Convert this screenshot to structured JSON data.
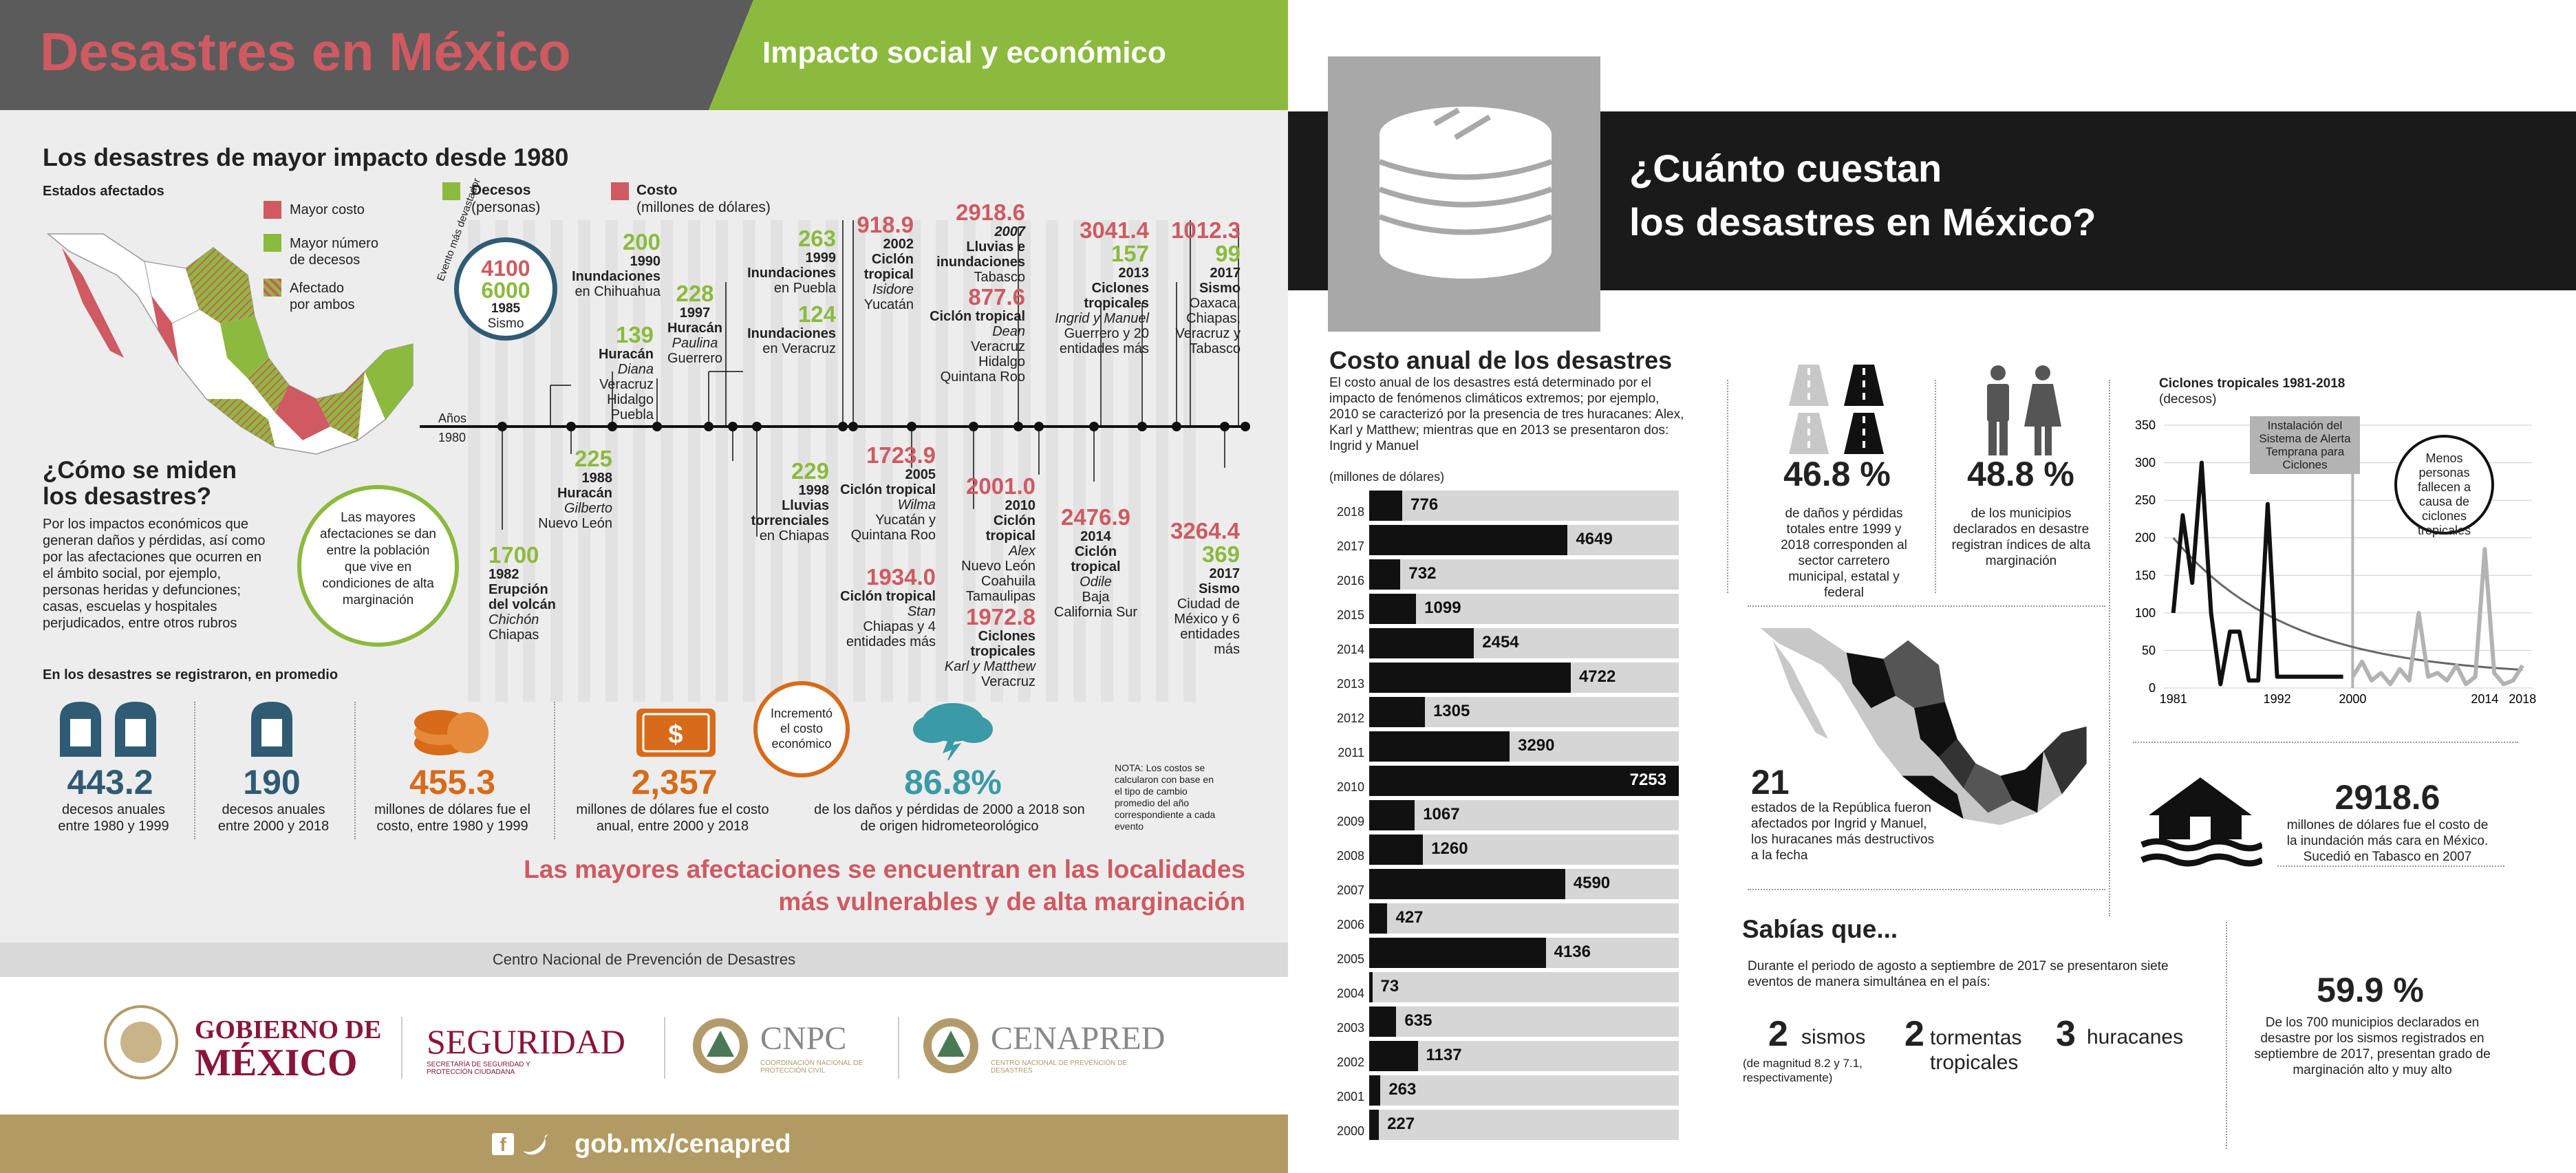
{
  "left": {
    "title": "Desastres en México",
    "subtitle": "Impacto social y económico",
    "section_title": "Los desastres de mayor impacto desde 1980",
    "map_label": "Estados afectados",
    "legend": [
      {
        "label": "Mayor costo",
        "color": "#cf5a61"
      },
      {
        "label": "Mayor número de decesos",
        "color": "#8cba3e"
      },
      {
        "label": "Afectado por ambos",
        "color": "#b3a35a"
      }
    ],
    "legend_decesos": {
      "title": "Decesos",
      "sub": "(personas)"
    },
    "legend_costo": {
      "title": "Costo",
      "sub": "(millones de dólares)"
    },
    "evento_label": "Evento más devastador",
    "big_event": {
      "cost": "4100",
      "deaths": "6000",
      "year": "1985",
      "name": "Sismo"
    },
    "timeline": {
      "label": "Años",
      "start": "1980"
    },
    "events_top": [
      {
        "id": "e1990",
        "value": "200",
        "color": "green",
        "year": "1990",
        "desc": "Inundaciones",
        "sub": "en Chihuahua",
        "italic": ""
      },
      {
        "id": "e1995",
        "value": "139",
        "color": "green",
        "year": "",
        "desc": "Huracán",
        "sub": "Veracruz Hidalgo Puebla",
        "italic": "Diana"
      },
      {
        "id": "e1997",
        "value": "228",
        "color": "green",
        "year": "1997",
        "desc": "Huracán",
        "sub": "Guerrero",
        "italic": "Paulina"
      },
      {
        "id": "e1999",
        "value": "263",
        "color": "green",
        "year": "1999",
        "desc": "Inundaciones",
        "sub": "en Puebla",
        "italic": ""
      },
      {
        "id": "e1999b",
        "value": "124",
        "color": "green",
        "year": "",
        "desc": "Inundaciones",
        "sub": "en Veracruz",
        "italic": ""
      },
      {
        "id": "e2002",
        "value": "918.9",
        "color": "red",
        "year": "2002",
        "desc": "Ciclón tropical",
        "sub": "Yucatán",
        "italic": "Isidore"
      },
      {
        "id": "e2007a",
        "value": "2918.6",
        "color": "red",
        "year": "2007",
        "desc": "Lluvias e inundaciones",
        "sub": "Tabasco",
        "italic": ""
      },
      {
        "id": "e2007b",
        "value": "877.6",
        "color": "red",
        "year": "",
        "desc": "Ciclón tropical",
        "sub": "Veracruz Hidalgo Quintana Roo",
        "italic": "Dean"
      },
      {
        "id": "e2013",
        "value": "3041.4",
        "color": "red",
        "value2": "157",
        "year": "2013",
        "desc": "Ciclones tropicales",
        "sub": "Guerrero y 20 entidades más",
        "italic": "Ingrid y Manuel"
      },
      {
        "id": "e2017a",
        "value": "1012.3",
        "color": "red",
        "value2": "99",
        "year": "2017",
        "desc": "Sismo",
        "sub": "Oaxaca, Chiapas, Veracruz y Tabasco",
        "italic": ""
      }
    ],
    "events_bottom": [
      {
        "id": "e1982",
        "value": "1700",
        "color": "green",
        "year": "1982",
        "desc": "Erupción del volcán",
        "sub": "Chiapas",
        "italic": "Chichón"
      },
      {
        "id": "e1988",
        "value": "225",
        "color": "green",
        "year": "1988",
        "desc": "Huracán",
        "sub": "Nuevo León",
        "italic": "Gilberto"
      },
      {
        "id": "e1998",
        "value": "229",
        "color": "green",
        "year": "1998",
        "desc": "Lluvias torrenciales",
        "sub": "en Chiapas",
        "italic": ""
      },
      {
        "id": "e2005a",
        "value": "1723.9",
        "color": "red",
        "year": "2005",
        "desc": "Ciclón tropical",
        "sub": "Yucatán y Quintana Roo",
        "italic": "Wilma"
      },
      {
        "id": "e2005b",
        "value": "1934.0",
        "color": "red",
        "year": "",
        "desc": "Ciclón tropical",
        "sub": "Chiapas y 4 entidades más",
        "italic": "Stan"
      },
      {
        "id": "e2010a",
        "value": "2001.0",
        "color": "red",
        "year": "2010",
        "desc": "Ciclón tropical",
        "sub": "Nuevo León Coahuila Tamaulipas",
        "italic": "Alex"
      },
      {
        "id": "e2010b",
        "value": "1972.8",
        "color": "red",
        "year": "",
        "desc": "Ciclones tropicales",
        "sub": "Veracruz",
        "italic": "Karl y Matthew"
      },
      {
        "id": "e2014",
        "value": "2476.9",
        "color": "red",
        "year": "2014",
        "desc": "Ciclón tropical",
        "sub": "Baja California Sur",
        "italic": "Odile"
      },
      {
        "id": "e2017b",
        "value": "3264.4",
        "color": "red",
        "value2": "369",
        "year": "2017",
        "desc": "Sismo",
        "sub": "Ciudad de México y 6 entidades más",
        "italic": ""
      }
    ],
    "como_title": "¿Cómo se miden los desastres?",
    "como_text": "Por los impactos económicos que generan daños y pérdidas, así como por las afectaciones que ocurren en el ámbito social, por ejemplo, personas heridas y defunciones; casas, escuelas y hospitales perjudicados, entre otros rubros",
    "bubble_text": "Las mayores afectaciones se dan entre la población que vive en condiciones de alta marginación",
    "promedio_label": "En los desastres se registraron, en promedio",
    "stats": [
      {
        "value": "443.2",
        "label": "decesos anuales entre 1980 y 1999"
      },
      {
        "value": "190",
        "label": "decesos anuales entre 2000 y 2018"
      },
      {
        "value": "455.3",
        "label": "millones de dólares fue el costo, entre 1980 y 1999"
      },
      {
        "value": "2,357",
        "label": "millones de dólares fue el costo anual, entre 2000 y 2018"
      },
      {
        "value": "86.8%",
        "label": "de los daños y pérdidas de 2000 a 2018 son de origen hidrometeorológico"
      }
    ],
    "incremento_text": "Incrementó el costo económico",
    "nota": "NOTA: Los costos se calcularon con base en el tipo de cambio promedio del año correspondiente a cada evento",
    "conclusion": "Las mayores afectaciones se encuentran en las localidades más vulnerables y de alta marginación",
    "footer_org": "Centro Nacional de Prevención de Desastres",
    "logos": {
      "gob1": "GOBIERNO DE",
      "gob2": "MÉXICO",
      "seg": "SEGURIDAD",
      "seg_sub": "SECRETARÍA DE SEGURIDAD Y PROTECCIÓN CIUDADANA",
      "cnpc": "CNPC",
      "cnpc_sub": "COORDINACIÓN NACIONAL DE PROTECCIÓN CIVIL",
      "cenapred": "CENAPRED",
      "cenapred_sub": "CENTRO NACIONAL DE PREVENCIÓN DE DESASTRES"
    },
    "url": "gob.mx/cenapred"
  },
  "right": {
    "title_line1": "¿Cuánto cuestan",
    "title_line2": "los desastres en México?",
    "costo_title": "Costo anual de los desastres",
    "costo_text": "El costo anual de los desastres está determinado por el impacto de fenómenos climáticos extremos; por ejemplo, 2010 se caracterizó por la presencia de tres huracanes: Alex, Karl y Matthew; mientras que en 2013 se presentaron dos: Ingrid y Manuel",
    "units": "(millones de dólares)",
    "pct1": {
      "value": "46.8 %",
      "label": "de daños y pérdidas totales entre 1999 y 2018 corresponden al sector carretero municipal, estatal y federal"
    },
    "pct2": {
      "value": "48.8 %",
      "label": "de los municipios declarados en desastre registran índices de alta marginación"
    },
    "map21": {
      "value": "21",
      "label": "estados de la República fueron afectados por Ingrid y Manuel, los huracanes más destructivos a la fecha"
    },
    "flood": {
      "value": "2918.6",
      "label": "millones de dólares fue el costo de la inundación más cara en México. Sucedió en Tabasco en 2007"
    },
    "sabias_title": "Sabías que...",
    "sabias_text": "Durante el periodo de agosto a septiembre de 2017 se presentaron siete eventos de manera simultánea en el país:",
    "sabias_items": [
      {
        "n": "2",
        "label": "sismos",
        "sub": "(de magnitud 8.2 y 7.1, respectivamente)"
      },
      {
        "n": "2",
        "label": "tormentas tropicales",
        "sub": ""
      },
      {
        "n": "3",
        "label": "huracanes",
        "sub": ""
      }
    ],
    "pct3": {
      "value": "59.9 %",
      "label": "De los 700 municipios declarados en desastre por los sismos registrados en septiembre de 2017, presentan grado de marginación alto y muy alto"
    }
  },
  "chart_data": [
    {
      "type": "bar",
      "title": "Costo anual de los desastres",
      "ylabel": "(millones de dólares)",
      "categories": [
        "2018",
        "2017",
        "2016",
        "2015",
        "2014",
        "2013",
        "2012",
        "2011",
        "2010",
        "2009",
        "2008",
        "2007",
        "2006",
        "2005",
        "2004",
        "2003",
        "2002",
        "2001",
        "2000"
      ],
      "values": [
        776,
        4649,
        732,
        1099,
        2454,
        4722,
        1305,
        3290,
        7253,
        1067,
        1260,
        4590,
        427,
        4136,
        73,
        635,
        1137,
        263,
        227
      ],
      "xlim": [
        0,
        7253
      ]
    },
    {
      "type": "line",
      "title": "Ciclones tropicales 1981-2018",
      "ylabel": "(decesos)",
      "ylim": [
        0,
        350
      ],
      "yticks": [
        0,
        50,
        100,
        150,
        200,
        250,
        300,
        350
      ],
      "xticks": [
        "1981",
        "1992",
        "2000",
        "2014",
        "2018"
      ],
      "annotations": [
        "Instalación del Sistema de Alerta Temprana para Ciclones",
        "Menos personas fallecen a causa de ciclones tropicales"
      ],
      "series": [
        {
          "years": [
            1981,
            1982,
            1983,
            1984,
            1985,
            1986,
            1987,
            1988,
            1989,
            1990,
            1991,
            1992,
            1993,
            1994,
            1995,
            1996,
            1997,
            1998,
            1999
          ],
          "values": [
            100,
            230,
            140,
            300,
            100,
            5,
            75,
            75,
            10,
            10,
            245,
            15,
            15,
            15,
            15,
            15,
            15,
            15,
            15
          ]
        },
        {
          "years": [
            2000,
            2001,
            2002,
            2003,
            2004,
            2005,
            2006,
            2007,
            2008,
            2009,
            2010,
            2011,
            2012,
            2013,
            2014,
            2015,
            2016,
            2017,
            2018
          ],
          "values": [
            15,
            35,
            10,
            20,
            5,
            25,
            10,
            100,
            15,
            20,
            10,
            30,
            5,
            15,
            185,
            20,
            5,
            10,
            30
          ]
        }
      ],
      "trend": {
        "years": [
          1981,
          2018
        ],
        "values": [
          200,
          15
        ]
      }
    }
  ]
}
